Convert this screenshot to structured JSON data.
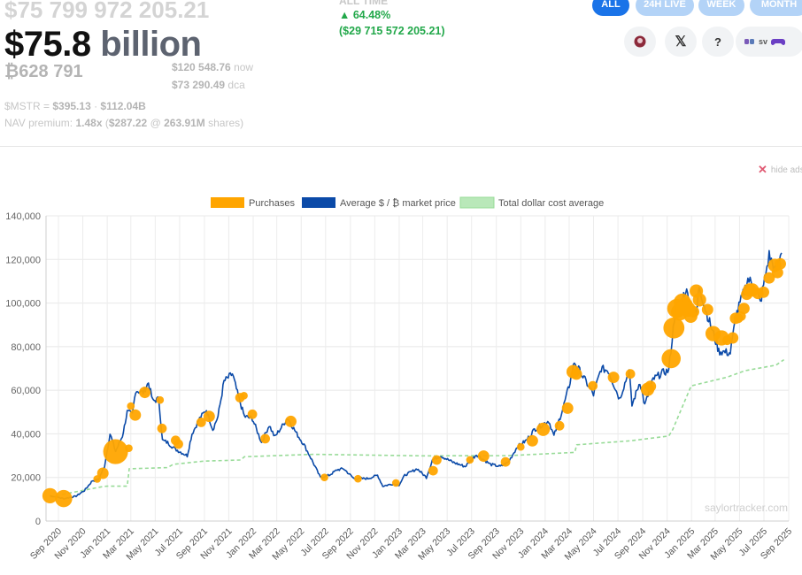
{
  "header": {
    "ghost_value": "$75 799 972 205.21",
    "big_value_num": "$75.8",
    "big_value_unit": "billion",
    "btc_holdings": "₿628 791",
    "price_now_value": "$120 548.76",
    "price_now_label": "now",
    "price_dca_value": "$73 290.49",
    "price_dca_label": "dca",
    "mstr_label": "$MSTR = ",
    "mstr_price": "$395.13",
    "mstr_sep": " · ",
    "mstr_cap": "$112.04B",
    "nav_label": "NAV premium: ",
    "nav_mult": "1.48x",
    "nav_rest": " (",
    "nav_price": "$287.22",
    "nav_at": " @ ",
    "nav_shares": "263.91M",
    "nav_tail": " shares)"
  },
  "change": {
    "label": "ALL TIME",
    "pct": "▲ 64.48%",
    "abs": "($29 715 572 205.21)",
    "color": "#22a84a"
  },
  "range_buttons": [
    {
      "label": "ALL",
      "active": true
    },
    {
      "label": "24H LIVE",
      "active": false
    },
    {
      "label": "WEEK",
      "active": false
    },
    {
      "label": "MONTH",
      "active": false
    }
  ],
  "icon_buttons": {
    "avatar_icon": "avatar-icon",
    "x_label": "𝕏",
    "help_label": "?",
    "sv_label": "sv"
  },
  "hide_ads": {
    "x": "✕",
    "label": "hide ads"
  },
  "watermark": "saylortracker.com",
  "chart_data": {
    "type": "line",
    "legend": [
      {
        "name": "Purchases",
        "color": "#ffa500"
      },
      {
        "name": "Average $ / ₿ market price",
        "color": "#0b4aa8"
      },
      {
        "name": "Total dollar cost average",
        "color": "#98db98"
      }
    ],
    "legend_position": "top-center",
    "grid": true,
    "ylim": [
      0,
      140000
    ],
    "yticks": [
      "0",
      "20,000",
      "40,000",
      "60,000",
      "80,000",
      "100,000",
      "120,000",
      "140,000"
    ],
    "xlim": [
      "2020-08-01",
      "2025-09-01"
    ],
    "xticks": [
      "Sep 2020",
      "Nov 2020",
      "Jan 2021",
      "Mar 2021",
      "May 2021",
      "Jul 2021",
      "Sep 2021",
      "Nov 2021",
      "Jan 2022",
      "Mar 2022",
      "May 2022",
      "Jul 2022",
      "Sep 2022",
      "Nov 2022",
      "Jan 2023",
      "Mar 2023",
      "May 2023",
      "Jul 2023",
      "Sep 2023",
      "Nov 2023",
      "Jan 2024",
      "Mar 2024",
      "May 2024",
      "Jul 2024",
      "Sep 2024",
      "Nov 2024",
      "Jan 2025",
      "Mar 2025",
      "May 2025",
      "Jul 2025",
      "Sep 2025"
    ],
    "series": [
      {
        "name": "Average $ / ₿ market price",
        "x": [
          "2020-08-11",
          "2020-09-15",
          "2020-10-15",
          "2020-11-05",
          "2020-11-25",
          "2020-12-10",
          "2020-12-25",
          "2021-01-08",
          "2021-01-22",
          "2021-02-08",
          "2021-02-20",
          "2021-03-05",
          "2021-03-13",
          "2021-04-01",
          "2021-04-14",
          "2021-04-25",
          "2021-05-10",
          "2021-05-19",
          "2021-06-01",
          "2021-06-20",
          "2021-07-20",
          "2021-08-01",
          "2021-08-20",
          "2021-09-06",
          "2021-09-22",
          "2021-10-05",
          "2021-10-20",
          "2021-11-10",
          "2021-11-25",
          "2021-12-10",
          "2021-12-30",
          "2022-01-22",
          "2022-02-10",
          "2022-02-24",
          "2022-03-28",
          "2022-04-20",
          "2022-05-08",
          "2022-05-25",
          "2022-06-18",
          "2022-07-10",
          "2022-07-30",
          "2022-08-15",
          "2022-09-10",
          "2022-10-15",
          "2022-11-08",
          "2022-11-21",
          "2022-12-15",
          "2023-01-01",
          "2023-01-15",
          "2023-02-15",
          "2023-03-10",
          "2023-03-25",
          "2023-04-14",
          "2023-05-15",
          "2023-06-15",
          "2023-07-13",
          "2023-08-17",
          "2023-09-11",
          "2023-10-01",
          "2023-10-23",
          "2023-11-15",
          "2023-12-05",
          "2024-01-10",
          "2024-01-23",
          "2024-02-15",
          "2024-03-01",
          "2024-03-14",
          "2024-04-15",
          "2024-05-01",
          "2024-05-20",
          "2024-06-07",
          "2024-07-05",
          "2024-07-29",
          "2024-08-05",
          "2024-08-25",
          "2024-09-06",
          "2024-09-27",
          "2024-10-20",
          "2024-11-05",
          "2024-11-22",
          "2024-12-05",
          "2024-12-17",
          "2025-01-13",
          "2025-01-20",
          "2025-02-05",
          "2025-02-28",
          "2025-03-10",
          "2025-04-08",
          "2025-04-22",
          "2025-05-10",
          "2025-05-22",
          "2025-06-10",
          "2025-06-22",
          "2025-07-14",
          "2025-07-31",
          "2025-08-14"
        ],
        "y": [
          11600,
          10300,
          11400,
          14000,
          18500,
          19000,
          25000,
          40000,
          32000,
          39000,
          50000,
          49000,
          60000,
          59000,
          63500,
          55000,
          56000,
          37000,
          36000,
          33000,
          30000,
          40000,
          47000,
          51000,
          42000,
          48000,
          64000,
          67500,
          57000,
          48000,
          47000,
          36000,
          44000,
          38500,
          47300,
          40000,
          35000,
          29000,
          20000,
          21000,
          23500,
          24000,
          19500,
          19500,
          21000,
          16000,
          17000,
          16600,
          21000,
          24000,
          20000,
          28000,
          30000,
          27000,
          25000,
          30500,
          26000,
          25000,
          27000,
          34000,
          37000,
          42000,
          46000,
          39000,
          52000,
          62000,
          73000,
          63000,
          58000,
          70000,
          69000,
          56000,
          69000,
          53000,
          64000,
          53000,
          65000,
          68000,
          69000,
          98000,
          100000,
          106000,
          94000,
          108000,
          97000,
          84000,
          78000,
          77000,
          94000,
          104000,
          111000,
          107000,
          100000,
          122000,
          114000,
          123000
        ]
      },
      {
        "name": "Total dollar cost average",
        "x": [
          "2020-08-11",
          "2020-12-20",
          "2021-01-01",
          "2021-02-20",
          "2021-02-25",
          "2021-06-01",
          "2021-06-15",
          "2021-09-01",
          "2021-12-01",
          "2021-12-10",
          "2022-06-01",
          "2023-03-01",
          "2023-10-01",
          "2024-03-15",
          "2024-03-20",
          "2024-08-01",
          "2024-11-05",
          "2024-11-15",
          "2024-12-31",
          "2025-03-31",
          "2025-05-15",
          "2025-07-31",
          "2025-08-20"
        ],
        "y": [
          11100,
          15800,
          16000,
          16000,
          24000,
          24500,
          26000,
          27500,
          28000,
          29500,
          30600,
          29900,
          30000,
          31500,
          35000,
          36800,
          39000,
          42000,
          62000,
          66000,
          69000,
          71500,
          74000
        ]
      },
      {
        "name": "Purchases",
        "x": [
          "2020-08-11",
          "2020-09-14",
          "2020-12-07",
          "2020-12-21",
          "2021-01-22",
          "2021-02-24",
          "2021-03-01",
          "2021-03-12",
          "2021-04-05",
          "2021-05-13",
          "2021-05-18",
          "2021-06-21",
          "2021-06-28",
          "2021-08-24",
          "2021-09-13",
          "2021-11-29",
          "2021-12-09",
          "2021-12-30",
          "2022-01-31",
          "2022-04-05",
          "2022-06-28",
          "2022-09-20",
          "2022-12-24",
          "2023-03-27",
          "2023-04-05",
          "2023-06-27",
          "2023-07-31",
          "2023-09-24",
          "2023-11-01",
          "2023-11-30",
          "2023-12-27",
          "2024-02-06",
          "2024-02-26",
          "2024-03-11",
          "2024-03-19",
          "2024-04-29",
          "2024-06-20",
          "2024-08-01",
          "2024-09-13",
          "2024-09-20",
          "2024-11-11",
          "2024-11-18",
          "2024-11-25",
          "2024-12-02",
          "2024-12-09",
          "2024-12-16",
          "2024-12-23",
          "2024-12-30",
          "2025-01-06",
          "2025-01-13",
          "2025-01-21",
          "2025-02-10",
          "2025-02-24",
          "2025-03-17",
          "2025-03-31",
          "2025-04-14",
          "2025-04-21",
          "2025-04-28",
          "2025-05-05",
          "2025-05-12",
          "2025-05-19",
          "2025-05-26",
          "2025-06-02",
          "2025-06-16",
          "2025-06-30",
          "2025-07-14",
          "2025-07-28",
          "2025-08-04",
          "2025-08-11"
        ],
        "y": [
          11600,
          10300,
          19300,
          21900,
          31800,
          33400,
          52700,
          48600,
          59000,
          55500,
          42500,
          37000,
          35300,
          45300,
          48000,
          56600,
          57500,
          49000,
          37800,
          45700,
          20000,
          19400,
          17500,
          23100,
          28000,
          28100,
          29800,
          27100,
          34000,
          36800,
          42100,
          43700,
          51800,
          68500,
          67400,
          62000,
          65900,
          67500,
          60400,
          61800,
          74500,
          88600,
          97500,
          95900,
          100400,
          99100,
          97200,
          94000,
          96000,
          105500,
          101500,
          97000,
          86000,
          84000,
          82900,
          84000,
          93000,
          93000,
          94000,
          97500,
          104000,
          106000,
          106000,
          104400,
          105000,
          111500,
          117300,
          114000,
          118000
        ],
        "sizes": [
          8,
          9,
          4,
          6,
          13,
          4,
          4,
          6,
          6,
          4,
          5,
          5,
          5,
          5,
          6,
          5,
          4,
          5,
          5,
          6,
          4,
          4,
          4,
          5,
          5,
          4,
          6,
          5,
          4,
          6,
          7,
          5,
          6,
          7,
          6,
          5,
          6,
          5,
          7,
          6,
          10,
          11,
          10,
          9,
          9,
          8,
          8,
          7,
          6,
          7,
          7,
          6,
          8,
          8,
          5,
          6,
          6,
          5,
          5,
          6,
          6,
          7,
          7,
          6,
          6,
          6,
          7,
          6,
          6
        ]
      }
    ],
    "annotations": [
      "saylortracker.com"
    ]
  }
}
